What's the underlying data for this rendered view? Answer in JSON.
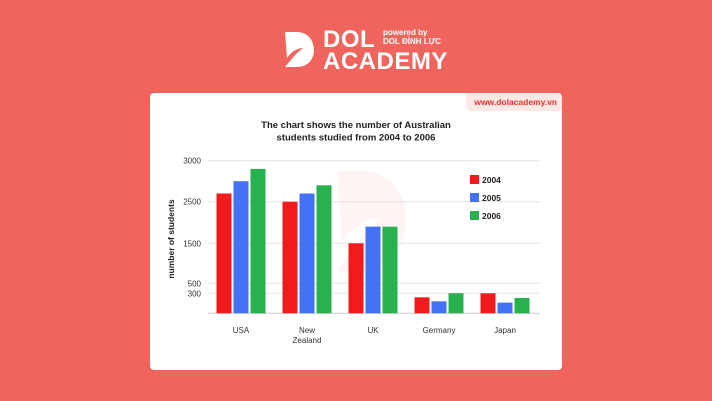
{
  "brand": {
    "name_line1": "DOL",
    "name_line2": "ACADEMY",
    "powered_by": "powered by",
    "powered_name": "DOL ĐÌNH LỰC",
    "website": "www.dolacademy.vn"
  },
  "colors": {
    "background": "#ef655d",
    "2004": "#f21b1b",
    "2005": "#4472f5",
    "2006": "#27b14f"
  },
  "chart_data": {
    "type": "bar",
    "title": "The chart shows the number of Australian students studied from 2004 to 2006",
    "title_lines": [
      "The chart shows the number of Australian",
      "students studied from 2004 to 2006"
    ],
    "xlabel": "",
    "ylabel": "number of students",
    "categories": [
      "USA",
      "New Zealand",
      "UK",
      "Germany",
      "Japan"
    ],
    "category_lines": [
      [
        "USA"
      ],
      [
        "New",
        "Zealand"
      ],
      [
        "UK"
      ],
      [
        "Germany"
      ],
      [
        "Japan"
      ]
    ],
    "yticks": [
      300,
      500,
      1500,
      2500,
      3000
    ],
    "ylim": [
      0,
      3000
    ],
    "grid": true,
    "legend": "top-right",
    "series": [
      {
        "name": "2004",
        "color": "#f21b1b",
        "values": [
          2600,
          2500,
          1500,
          240,
          300
        ]
      },
      {
        "name": "2005",
        "color": "#4472f5",
        "values": [
          2750,
          2600,
          1900,
          180,
          160
        ]
      },
      {
        "name": "2006",
        "color": "#27b14f",
        "values": [
          2900,
          2700,
          1900,
          300,
          230
        ]
      }
    ]
  }
}
